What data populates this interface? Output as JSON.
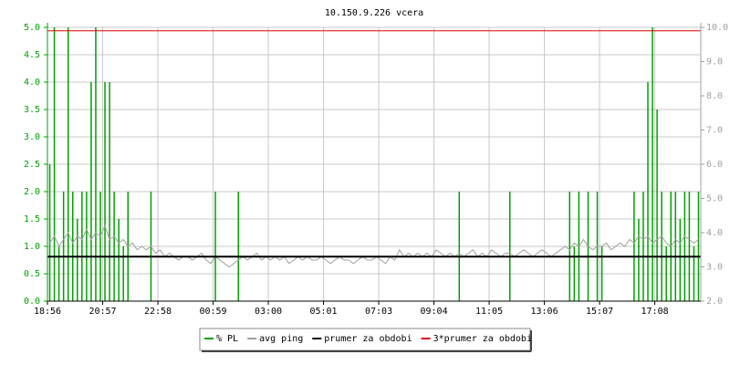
{
  "chart_data": {
    "type": "line",
    "title": "10.150.9.226 vcera",
    "categories": [
      "18:56",
      null,
      null,
      null,
      null,
      null,
      null,
      null,
      null,
      null,
      null,
      null,
      "20:57",
      null,
      null,
      null,
      null,
      null,
      null,
      null,
      null,
      null,
      null,
      null,
      "22:58",
      null,
      null,
      null,
      null,
      null,
      null,
      null,
      null,
      null,
      null,
      null,
      "00:59",
      null,
      null,
      null,
      null,
      null,
      null,
      null,
      null,
      null,
      null,
      null,
      "03:00",
      null,
      null,
      null,
      null,
      null,
      null,
      null,
      null,
      null,
      null,
      null,
      "05:01",
      null,
      null,
      null,
      null,
      null,
      null,
      null,
      null,
      null,
      null,
      null,
      "07:03",
      null,
      null,
      null,
      null,
      null,
      null,
      null,
      null,
      null,
      null,
      null,
      "09:04",
      null,
      null,
      null,
      null,
      null,
      null,
      null,
      null,
      null,
      null,
      null,
      "11:05",
      null,
      null,
      null,
      null,
      null,
      null,
      null,
      null,
      null,
      null,
      null,
      "13:06",
      null,
      null,
      null,
      null,
      null,
      null,
      null,
      null,
      null,
      null,
      null,
      "15:07",
      null,
      null,
      null,
      null,
      null,
      null,
      null,
      null,
      null,
      null,
      null,
      "17:08",
      null,
      null,
      null,
      null,
      null,
      null,
      null,
      null,
      null
    ],
    "series": [
      {
        "name": "% PL",
        "color": "#00a000",
        "style": "impulse",
        "values": [
          2.5,
          5.0,
          1.0,
          2.0,
          5.0,
          2.0,
          1.5,
          2.0,
          2.0,
          4.0,
          5.0,
          2.0,
          4.0,
          4.0,
          2.0,
          1.5,
          1.0,
          2.0,
          0,
          0,
          0,
          0,
          2.0,
          0,
          0,
          0,
          0,
          0,
          0,
          0,
          0,
          0,
          0,
          0,
          0,
          0,
          2.0,
          0,
          0,
          0,
          0,
          2.0,
          0,
          0,
          0,
          0,
          0,
          0,
          0,
          0,
          0,
          0,
          0,
          0,
          0,
          0,
          0,
          0,
          0,
          0,
          0,
          0,
          0,
          0,
          0,
          0,
          0,
          0,
          0,
          0,
          0,
          0,
          0,
          0,
          0,
          0,
          0,
          0,
          0,
          0,
          0,
          0,
          0,
          0,
          0,
          0,
          0,
          0,
          0,
          2.0,
          0,
          0,
          0,
          0,
          0,
          0,
          0,
          0,
          0,
          0,
          2.0,
          0,
          0,
          0,
          0,
          0,
          0,
          0,
          0,
          0,
          0,
          0,
          0,
          2.0,
          1.0,
          2.0,
          0,
          2.0,
          0,
          2.0,
          1.0,
          0,
          0,
          0,
          0,
          0,
          0,
          2.0,
          1.5,
          2.0,
          4.0,
          5.0,
          3.5,
          2.0,
          1.0,
          2.0,
          2.0,
          1.5,
          2.0,
          2.0,
          1.0,
          2.0
        ]
      },
      {
        "name": "avg ping",
        "color": "#a0a0a0",
        "style": "line",
        "axis": "y2",
        "values": [
          3.7,
          3.9,
          3.6,
          3.8,
          4.0,
          3.7,
          3.9,
          3.8,
          4.1,
          3.8,
          4.0,
          3.9,
          4.2,
          3.8,
          3.9,
          3.7,
          3.8,
          3.6,
          3.7,
          3.5,
          3.6,
          3.5,
          3.6,
          3.4,
          3.5,
          3.3,
          3.4,
          3.3,
          3.2,
          3.3,
          3.3,
          3.2,
          3.3,
          3.4,
          3.2,
          3.1,
          3.3,
          3.2,
          3.1,
          3.0,
          3.1,
          3.2,
          3.3,
          3.2,
          3.3,
          3.4,
          3.2,
          3.3,
          3.2,
          3.3,
          3.2,
          3.3,
          3.1,
          3.2,
          3.3,
          3.2,
          3.3,
          3.2,
          3.2,
          3.3,
          3.2,
          3.1,
          3.2,
          3.3,
          3.2,
          3.2,
          3.1,
          3.2,
          3.3,
          3.2,
          3.2,
          3.3,
          3.2,
          3.1,
          3.3,
          3.2,
          3.5,
          3.3,
          3.4,
          3.3,
          3.4,
          3.3,
          3.4,
          3.3,
          3.5,
          3.4,
          3.3,
          3.4,
          3.3,
          3.4,
          3.3,
          3.4,
          3.5,
          3.3,
          3.4,
          3.3,
          3.5,
          3.4,
          3.3,
          3.4,
          3.4,
          3.3,
          3.4,
          3.5,
          3.4,
          3.3,
          3.4,
          3.5,
          3.4,
          3.3,
          3.4,
          3.5,
          3.6,
          3.5,
          3.7,
          3.6,
          3.8,
          3.6,
          3.5,
          3.6,
          3.6,
          3.7,
          3.5,
          3.6,
          3.7,
          3.6,
          3.8,
          3.7,
          3.9,
          3.8,
          3.9,
          3.7,
          3.8,
          3.9,
          3.7,
          3.6,
          3.8,
          3.7,
          3.9,
          3.8,
          3.7,
          3.8
        ]
      },
      {
        "name": "prumer za obdobi",
        "color": "#000000",
        "style": "hline",
        "axis": "y2",
        "value": 3.3
      },
      {
        "name": "3*prumer za obdobi",
        "color": "#e00000",
        "style": "hline",
        "axis": "y2",
        "value": 9.9
      }
    ],
    "ylim": [
      0,
      5
    ],
    "yticks": [
      {
        "value": 0,
        "label": "0.0"
      },
      {
        "value": 0.5,
        "label": "0.5"
      },
      {
        "value": 1,
        "label": "1.0"
      },
      {
        "value": 1.5,
        "label": "1.5"
      },
      {
        "value": 2,
        "label": "2.0"
      },
      {
        "value": 2.5,
        "label": "2.5"
      },
      {
        "value": 3,
        "label": "3.0"
      },
      {
        "value": 3.5,
        "label": "3.5"
      },
      {
        "value": 4,
        "label": "4.0"
      },
      {
        "value": 4.5,
        "label": "4.5"
      },
      {
        "value": 5,
        "label": "5.0"
      }
    ],
    "y2lim": [
      2,
      10
    ],
    "y2ticks": [
      {
        "value": 2,
        "label": "2.0"
      },
      {
        "value": 3,
        "label": "3.0"
      },
      {
        "value": 4,
        "label": "4.0"
      },
      {
        "value": 5,
        "label": "5.0"
      },
      {
        "value": 6,
        "label": "6.0"
      },
      {
        "value": 7,
        "label": "7.0"
      },
      {
        "value": 8,
        "label": "8.0"
      },
      {
        "value": 9,
        "label": "9.0"
      },
      {
        "value": 10,
        "label": "10.0"
      }
    ],
    "grid": true
  }
}
